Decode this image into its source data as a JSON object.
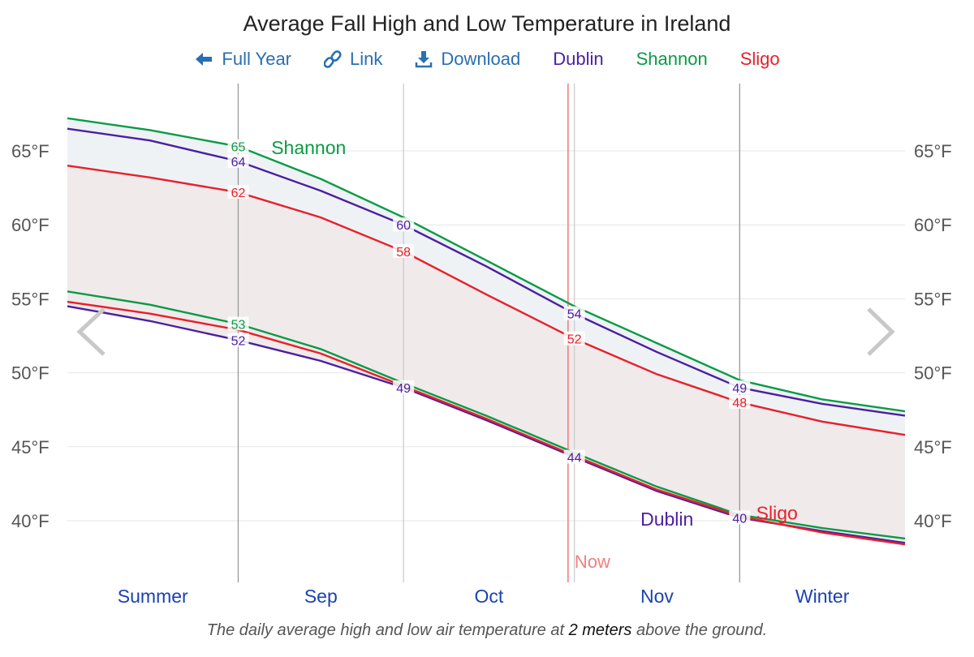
{
  "header": {
    "title": "Average Fall High and Low Temperature in Ireland"
  },
  "toolbar": {
    "full_year": "Full Year",
    "link": "Link",
    "download": "Download"
  },
  "legend": [
    {
      "name": "Dublin",
      "color": "#4b1fa0"
    },
    {
      "name": "Shannon",
      "color": "#0a9b45"
    },
    {
      "name": "Sligo",
      "color": "#e8202a"
    }
  ],
  "caption": {
    "pre": "The daily average high and low air temperature at ",
    "bold": "2 meters",
    "post": " above the ground."
  },
  "nav": {
    "prev": "chevron-left-icon",
    "next": "chevron-right-icon"
  },
  "chart_data": {
    "type": "line",
    "title": "Average Fall High and Low Temperature in Ireland",
    "x": [
      "08-01",
      "08-16",
      "09-01",
      "09-16",
      "10-01",
      "10-16",
      "11-01",
      "11-16",
      "12-01",
      "12-16",
      "12-31"
    ],
    "ylim": [
      36,
      69
    ],
    "yticks": [
      40,
      45,
      50,
      55,
      60,
      65
    ],
    "ytick_labels": [
      "40°F",
      "45°F",
      "50°F",
      "55°F",
      "60°F",
      "65°F"
    ],
    "month_labels": [
      "Summer",
      "Sep",
      "Oct",
      "Nov",
      "Winter"
    ],
    "now_label": "Now",
    "now": "10-31",
    "grid": true,
    "series": [
      {
        "name": "Shannon",
        "kind": "high",
        "color": "#0a9b45",
        "values": [
          67.2,
          66.4,
          65.3,
          63.1,
          60.5,
          57.6,
          54.5,
          52.0,
          49.5,
          48.2,
          47.4
        ]
      },
      {
        "name": "Dublin",
        "kind": "high",
        "color": "#4b1fa0",
        "values": [
          66.5,
          65.7,
          64.3,
          62.3,
          60.0,
          57.2,
          54.0,
          51.4,
          49.0,
          47.9,
          47.1
        ]
      },
      {
        "name": "Sligo",
        "kind": "high",
        "color": "#e8202a",
        "values": [
          64.0,
          63.2,
          62.2,
          60.5,
          58.2,
          55.3,
          52.3,
          49.9,
          48.0,
          46.7,
          45.8
        ]
      },
      {
        "name": "Shannon",
        "kind": "low",
        "color": "#0a9b45",
        "values": [
          55.5,
          54.6,
          53.3,
          51.6,
          49.3,
          47.1,
          44.6,
          42.3,
          40.4,
          39.5,
          38.8
        ]
      },
      {
        "name": "Dublin",
        "kind": "low",
        "color": "#4b1fa0",
        "values": [
          54.5,
          53.5,
          52.2,
          50.8,
          49.0,
          46.8,
          44.3,
          42.0,
          40.2,
          39.3,
          38.5
        ]
      },
      {
        "name": "Sligo",
        "kind": "low",
        "color": "#e8202a",
        "values": [
          54.8,
          54.0,
          52.9,
          51.3,
          49.1,
          46.9,
          44.4,
          42.1,
          40.3,
          39.2,
          38.4
        ]
      }
    ],
    "data_labels": [
      {
        "series": 0,
        "x": "09-01",
        "text": "65"
      },
      {
        "series": 1,
        "x": "09-01",
        "text": "64"
      },
      {
        "series": 2,
        "x": "09-01",
        "text": "62"
      },
      {
        "series": 1,
        "x": "10-01",
        "text": "60"
      },
      {
        "series": 2,
        "x": "10-01",
        "text": "58"
      },
      {
        "series": 1,
        "x": "11-01",
        "text": "54"
      },
      {
        "series": 2,
        "x": "11-01",
        "text": "52"
      },
      {
        "series": 1,
        "x": "12-01",
        "text": "49"
      },
      {
        "series": 2,
        "x": "12-01",
        "text": "48"
      },
      {
        "series": 0,
        "x": "09-01",
        "text": "53",
        "low": true
      },
      {
        "series": 4,
        "x": "09-01",
        "text": "52"
      },
      {
        "series": 4,
        "x": "10-01",
        "text": "49"
      },
      {
        "series": 4,
        "x": "11-01",
        "text": "44"
      },
      {
        "series": 4,
        "x": "12-01",
        "text": "40"
      }
    ],
    "series_annotations": [
      {
        "text": "Shannon",
        "color": "#0a9b45",
        "x": "09-07",
        "y": 65.1
      },
      {
        "text": "Dublin",
        "color": "#4b1fa0",
        "x": "11-13",
        "y": 40.0
      },
      {
        "text": "Sligo",
        "color": "#e8202a",
        "x": "12-04",
        "y": 40.4
      }
    ]
  }
}
